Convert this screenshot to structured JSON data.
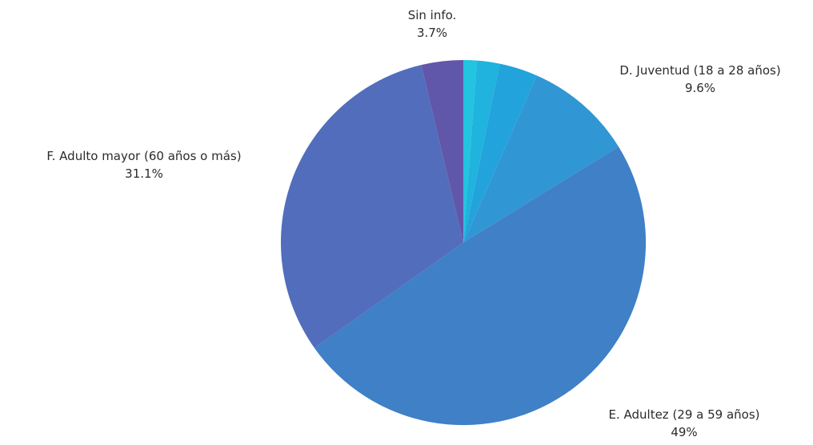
{
  "chart_data": {
    "type": "pie",
    "title": "",
    "slices": [
      {
        "label": "",
        "value": 1.2,
        "value_label": "",
        "color": "#22C4E0"
      },
      {
        "label": "",
        "value": 2.0,
        "value_label": "",
        "color": "#1FB3DE"
      },
      {
        "label": "",
        "value": 3.4,
        "value_label": "",
        "color": "#22A3DC"
      },
      {
        "label": "D. Juventud (18 a 28 años)",
        "value": 9.6,
        "value_label": "9.6%",
        "color": "#3196D4"
      },
      {
        "label": "E. Adultez (29 a 59 años)",
        "value": 49,
        "value_label": "49%",
        "color": "#3F80C6"
      },
      {
        "label": "F. Adulto mayor (60 años o más)",
        "value": 31.1,
        "value_label": "31.1%",
        "color": "#526DBC"
      },
      {
        "label": "Sin info.",
        "value": 3.7,
        "value_label": "3.7%",
        "color": "#6157AA"
      }
    ],
    "start_angle_deg": 0,
    "direction": "clockwise",
    "legend": "none"
  },
  "labels": {
    "sin_info": {
      "name": "Sin info.",
      "value": "3.7%"
    },
    "juventud": {
      "name": "D. Juventud (18 a 28 años)",
      "value": "9.6%"
    },
    "adulto_mayor": {
      "name": "F. Adulto mayor (60 años o más)",
      "value": "31.1%"
    },
    "adultez": {
      "name": "E. Adultez (29 a 59 años)",
      "value": "49%"
    }
  }
}
